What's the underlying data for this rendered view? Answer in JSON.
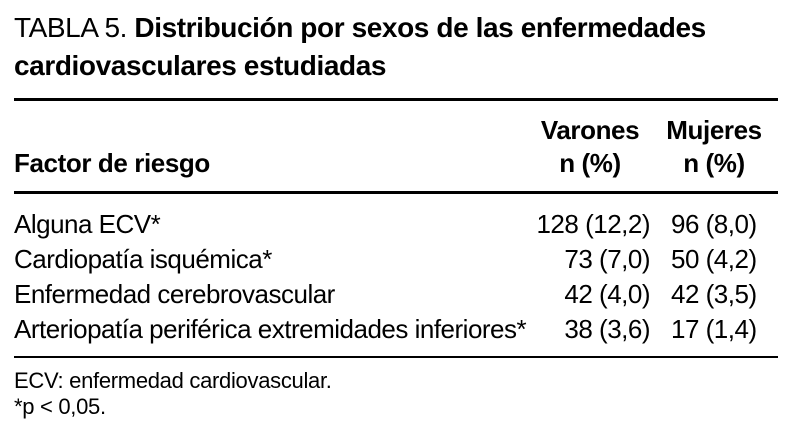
{
  "table": {
    "title_prefix": "TABLA 5. ",
    "title_text": "Distribución por sexos de las enfermedades cardiovasculares estudiadas",
    "columns": {
      "factor": "Factor de riesgo",
      "varones_line1": "Varones",
      "varones_line2": "n (%)",
      "mujeres_line1": "Mujeres",
      "mujeres_line2": "n (%)"
    },
    "rows": [
      {
        "factor": "Alguna ECV*",
        "varones": "128 (12,2)",
        "mujeres": "96 (8,0)"
      },
      {
        "factor": "Cardiopatía isquémica*",
        "varones": "73 (7,0)",
        "mujeres": "50 (4,2)"
      },
      {
        "factor": "Enfermedad cerebrovascular",
        "varones": "42 (4,0)",
        "mujeres": "42 (3,5)"
      },
      {
        "factor": "Arteriopatía periférica extremidades inferiores*",
        "varones": "38 (3,6)",
        "mujeres": "17 (1,4)"
      }
    ],
    "footnotes": {
      "abbreviation": "ECV: enfermedad cardiovascular.",
      "significance": "*p < 0,05."
    }
  },
  "colors": {
    "text": "#000000",
    "background": "#ffffff",
    "rule": "#000000"
  }
}
